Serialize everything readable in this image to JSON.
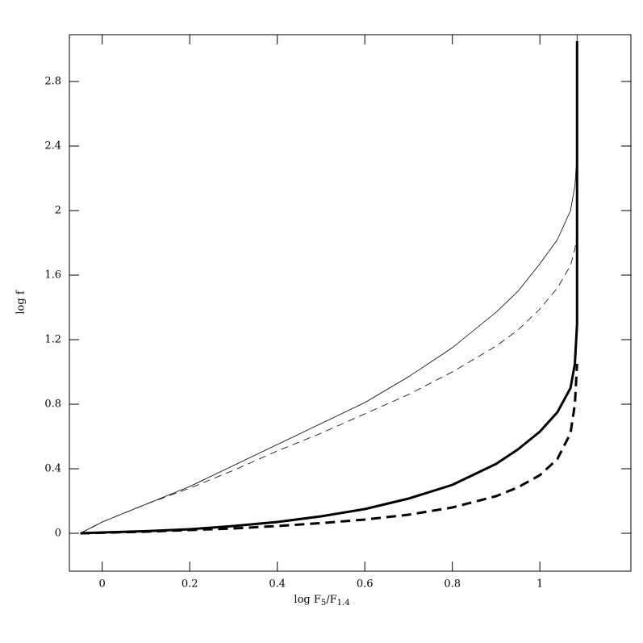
{
  "chart_data": {
    "type": "line",
    "xlabel_parts": [
      "log F",
      "5",
      "/F",
      "1.4"
    ],
    "ylabel": "log f",
    "xlim": [
      -0.075,
      1.208
    ],
    "ylim": [
      -0.235,
      3.09
    ],
    "xticks": [
      0,
      0.2,
      0.4,
      0.6,
      0.8,
      1
    ],
    "yticks": [
      0,
      0.4,
      0.8,
      1.2,
      1.6,
      2,
      2.4,
      2.8
    ],
    "series": [
      {
        "color": "#000000",
        "dashed": false,
        "width": 0.8,
        "x": [
          -0.05,
          0,
          0.1,
          0.2,
          0.3,
          0.4,
          0.5,
          0.6,
          0.7,
          0.8,
          0.9,
          0.95,
          1.0,
          1.04,
          1.07,
          1.08,
          1.085,
          1.085
        ],
        "values": [
          0,
          0.07,
          0.18,
          0.29,
          0.42,
          0.55,
          0.68,
          0.81,
          0.97,
          1.15,
          1.37,
          1.5,
          1.67,
          1.82,
          2.0,
          2.15,
          2.35,
          3.09
        ]
      },
      {
        "color": "#000000",
        "dashed": true,
        "width": 0.8,
        "x": [
          -0.05,
          0,
          0.1,
          0.2,
          0.3,
          0.4,
          0.5,
          0.6,
          0.7,
          0.8,
          0.9,
          0.95,
          1.0,
          1.04,
          1.07,
          1.08,
          1.085
        ],
        "values": [
          0,
          0.07,
          0.18,
          0.28,
          0.39,
          0.51,
          0.62,
          0.74,
          0.86,
          1.0,
          1.16,
          1.26,
          1.39,
          1.52,
          1.66,
          1.76,
          1.86
        ]
      },
      {
        "color": "#000000",
        "dashed": false,
        "width": 3,
        "x": [
          -0.05,
          0,
          0.1,
          0.2,
          0.3,
          0.4,
          0.5,
          0.6,
          0.7,
          0.8,
          0.9,
          0.95,
          1.0,
          1.04,
          1.07,
          1.08,
          1.085,
          1.085
        ],
        "values": [
          0,
          0.005,
          0.013,
          0.025,
          0.045,
          0.07,
          0.105,
          0.15,
          0.215,
          0.3,
          0.43,
          0.52,
          0.63,
          0.75,
          0.9,
          1.05,
          1.3,
          3.05
        ]
      },
      {
        "color": "#000000",
        "dashed": true,
        "width": 3,
        "x": [
          -0.05,
          0,
          0.1,
          0.2,
          0.3,
          0.4,
          0.5,
          0.6,
          0.7,
          0.8,
          0.9,
          0.95,
          1.0,
          1.04,
          1.07,
          1.08,
          1.085
        ],
        "values": [
          0,
          0.003,
          0.01,
          0.02,
          0.03,
          0.045,
          0.063,
          0.085,
          0.115,
          0.16,
          0.23,
          0.285,
          0.36,
          0.46,
          0.62,
          0.8,
          1.05
        ]
      }
    ]
  }
}
